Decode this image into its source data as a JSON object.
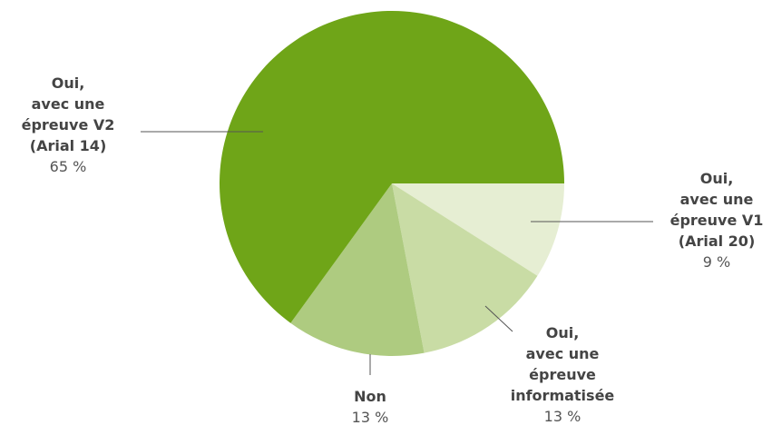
{
  "chart_data": {
    "type": "pie",
    "categories": [
      "Oui,\navec une\népreuve V1\n(Arial 20)",
      "Oui,\navec une\népreuve\ninformatisée",
      "Non",
      "Oui,\navec une\népreuve V2\n(Arial 14)"
    ],
    "values": [
      9,
      13,
      13,
      65
    ],
    "value_labels": [
      "9 %",
      "13 %",
      "13 %",
      "65 %"
    ],
    "colors": [
      "#e6eed3",
      "#c9dca5",
      "#aecb80",
      "#6fa518"
    ]
  }
}
